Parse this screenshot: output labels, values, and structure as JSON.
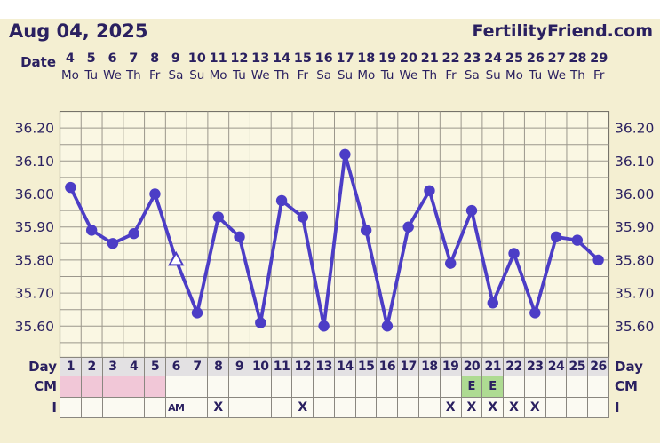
{
  "header": {
    "date_title": "Aug 04, 2025",
    "brand": "FertilityFriend.com"
  },
  "axis": {
    "date_label": "Date",
    "dates": [
      4,
      5,
      6,
      7,
      8,
      9,
      10,
      11,
      12,
      13,
      14,
      15,
      16,
      17,
      18,
      19,
      20,
      21,
      22,
      23,
      24,
      25,
      26,
      27,
      28,
      29
    ],
    "weekdays": [
      "Mo",
      "Tu",
      "We",
      "Th",
      "Fr",
      "Sa",
      "Su",
      "Mo",
      "Tu",
      "We",
      "Th",
      "Fr",
      "Sa",
      "Su",
      "Mo",
      "Tu",
      "We",
      "Th",
      "Fr",
      "Sa",
      "Su",
      "Mo",
      "Tu",
      "We",
      "Th",
      "Fr"
    ]
  },
  "chart_data": {
    "type": "line",
    "title": "Basal body temperature chart (Celsius)",
    "x": [
      1,
      2,
      3,
      4,
      5,
      6,
      7,
      8,
      9,
      10,
      11,
      12,
      13,
      14,
      15,
      16,
      17,
      18,
      19,
      20,
      21,
      22,
      23,
      24,
      25,
      26
    ],
    "values": [
      36.02,
      35.89,
      35.85,
      35.88,
      36.0,
      35.8,
      35.64,
      35.93,
      35.87,
      35.61,
      35.98,
      35.93,
      35.6,
      36.12,
      35.89,
      35.6,
      35.9,
      36.01,
      35.79,
      35.95,
      35.67,
      35.82,
      35.64,
      35.87,
      35.86,
      35.8
    ],
    "special_markers": [
      {
        "day": 6,
        "value": 35.8,
        "type": "open-triangle"
      }
    ],
    "y_ticks": [
      "36.20",
      "36.10",
      "36.00",
      "35.90",
      "35.80",
      "35.70",
      "35.60"
    ],
    "ylim": [
      35.55,
      36.25
    ],
    "grid": true,
    "line_color": "#4c3dc6",
    "grid_color": "#9b978c",
    "plot_bg": "#faf7e3",
    "plot_border": "#76736a",
    "text_color": "#2a2060"
  },
  "table": {
    "day_label": "Day",
    "cm_label": "CM",
    "i_label": "I",
    "days": [
      1,
      2,
      3,
      4,
      5,
      6,
      7,
      8,
      9,
      10,
      11,
      12,
      13,
      14,
      15,
      16,
      17,
      18,
      19,
      20,
      21,
      22,
      23,
      24,
      25,
      26
    ],
    "cm_cells": [
      {
        "day": 1,
        "type": "menses",
        "text": ""
      },
      {
        "day": 2,
        "type": "menses",
        "text": ""
      },
      {
        "day": 3,
        "type": "menses",
        "text": ""
      },
      {
        "day": 4,
        "type": "menses",
        "text": ""
      },
      {
        "day": 5,
        "type": "menses",
        "text": ""
      },
      {
        "day": 20,
        "type": "eggwhite",
        "text": "E"
      },
      {
        "day": 21,
        "type": "eggwhite",
        "text": "E"
      }
    ],
    "i_cells": [
      {
        "day": 6,
        "text": "AM"
      },
      {
        "day": 8,
        "text": "X"
      },
      {
        "day": 12,
        "text": "X"
      },
      {
        "day": 19,
        "text": "X"
      },
      {
        "day": 20,
        "text": "X"
      },
      {
        "day": 21,
        "text": "X"
      },
      {
        "day": 22,
        "text": "X"
      },
      {
        "day": 23,
        "text": "X"
      }
    ],
    "colors": {
      "menses_pink": "#f1c7d7",
      "eggwhite_green": "#aedb92",
      "day_row_gray": "#e3e1e3"
    }
  }
}
